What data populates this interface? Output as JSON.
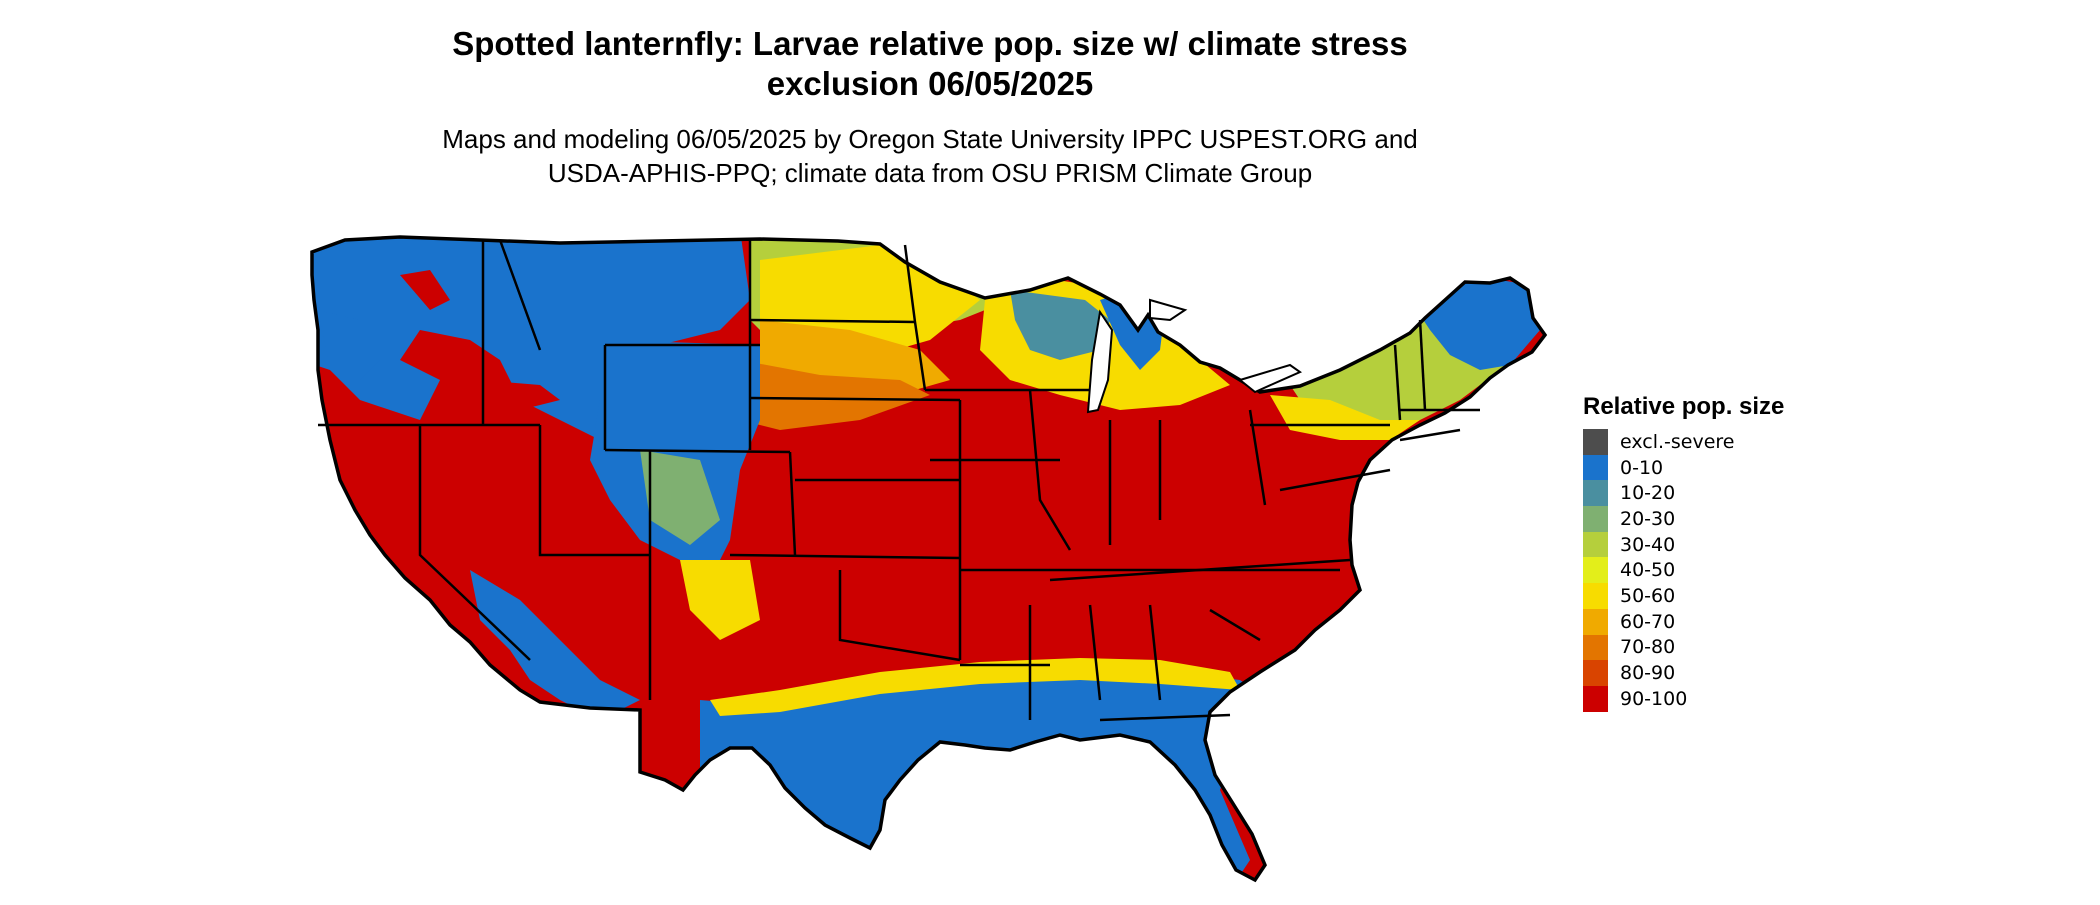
{
  "title_line1": "Spotted lanternfly: Larvae relative pop. size w/ climate stress",
  "title_line2": "exclusion 06/05/2025",
  "subtitle_line1": "Maps and modeling 06/05/2025 by Oregon State University IPPC USPEST.ORG and",
  "subtitle_line2": "USDA-APHIS-PPQ; climate data from OSU PRISM Climate Group",
  "legend": {
    "title": "Relative pop. size",
    "items": [
      {
        "label": "excl.-severe",
        "color": "#4d4d4d"
      },
      {
        "label": "0-10",
        "color": "#1a73cc"
      },
      {
        "label": "10-20",
        "color": "#4a8fa0"
      },
      {
        "label": "20-30",
        "color": "#7fb071"
      },
      {
        "label": "30-40",
        "color": "#b5cf3c"
      },
      {
        "label": "40-50",
        "color": "#e3ee1a"
      },
      {
        "label": "50-60",
        "color": "#f7dc00"
      },
      {
        "label": "60-70",
        "color": "#f0aa00"
      },
      {
        "label": "70-80",
        "color": "#e37500"
      },
      {
        "label": "80-90",
        "color": "#d94400"
      },
      {
        "label": "90-100",
        "color": "#cc0000"
      }
    ]
  },
  "map": {
    "background_color": "#cc0000",
    "cool_color": "#1a73cc",
    "border_color": "#000000"
  }
}
